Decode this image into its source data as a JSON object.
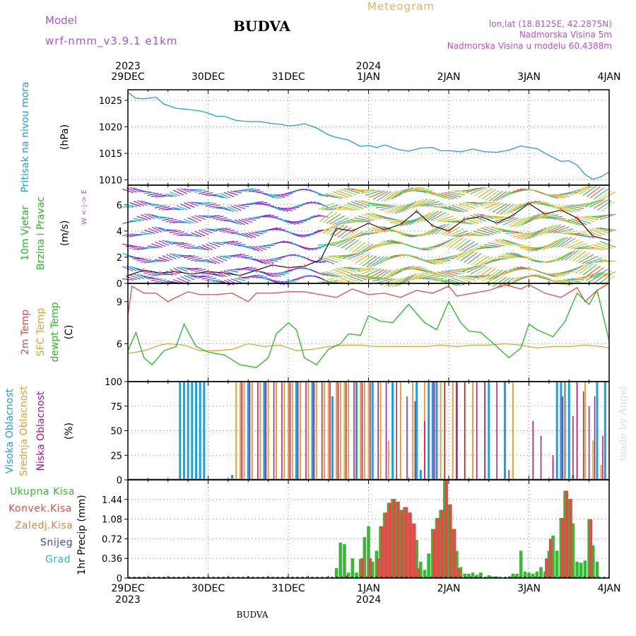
{
  "header": {
    "model_label": "Model",
    "model_name": "wrf-nmm_v3.9.1 e1km",
    "station": "BUDVA",
    "title": "Meteogram",
    "coords": "lon,lat (18.8125E, 42.2875N)",
    "elevation": "Nadmorska Visina 5m",
    "model_elevation": "Nadmorska Visina u modelu 60.4388m",
    "footer_station": "BUDVA",
    "watermark": "made by Angel"
  },
  "colors": {
    "model": "#b050d8",
    "title": "#e8b060",
    "coords": "#c050c8",
    "pressure": "#1aa0e8",
    "wind_label": "#22c01a",
    "temp2m": "#e84848",
    "sfc_temp": "#e8a030",
    "dewpt": "#22c01a",
    "cloud_high": "#1aa0e8",
    "cloud_mid": "#e8a030",
    "cloud_low": "#c0107a",
    "precip_total": "#33bb33",
    "precip_conv": "#e84848",
    "precip_frozen": "#f08040",
    "precip_snow": "#4444dd",
    "precip_grad": "#22c0c0",
    "grid": "#888888"
  },
  "chart_data": [
    {
      "type": "line",
      "x_ticks_top": [
        "29DEC",
        "30DEC",
        "31DEC",
        "1JAN",
        "2JAN",
        "3JAN",
        "4JAN"
      ],
      "year_top": [
        "2023",
        "2024"
      ],
      "x_ticks_bottom": [
        "29DEC",
        "30DEC",
        "31DEC",
        "1JAN",
        "2JAN",
        "3JAN",
        "4JAN"
      ],
      "year_bottom": [
        "2023",
        "2024"
      ],
      "ylabel": "Pritisak na nivou mora",
      "unit": "(hPa)",
      "ylim": [
        1009,
        1027
      ],
      "yticks": [
        1010,
        1015,
        1020,
        1025
      ],
      "series": [
        {
          "x": [
            0,
            0.1,
            0.2,
            0.35,
            0.45,
            0.6,
            0.75,
            0.9,
            1.0,
            1.1,
            1.2,
            1.35,
            1.5,
            1.65,
            1.8,
            1.9,
            2.0,
            2.1,
            2.2,
            2.35,
            2.5,
            2.6,
            2.75,
            2.9,
            3.0,
            3.1,
            3.2,
            3.35,
            3.5,
            3.65,
            3.8,
            3.9,
            4.0,
            4.15,
            4.3,
            4.45,
            4.6,
            4.75,
            4.9,
            5.0,
            5.1,
            5.25,
            5.4,
            5.5,
            5.6,
            5.7,
            5.8,
            5.9,
            6.0
          ],
          "values": [
            1026.5,
            1025.4,
            1025.3,
            1025.6,
            1024.3,
            1023.5,
            1023.3,
            1023.0,
            1022.6,
            1022.0,
            1022.0,
            1021.2,
            1021.0,
            1021.0,
            1020.6,
            1020.5,
            1020.2,
            1020.3,
            1020.6,
            1019.8,
            1018.5,
            1018.0,
            1017.5,
            1016.3,
            1016.5,
            1016.1,
            1016.6,
            1015.8,
            1015.4,
            1016.0,
            1016.1,
            1015.5,
            1015.5,
            1015.3,
            1015.8,
            1015.3,
            1015.2,
            1015.6,
            1016.4,
            1016.1,
            1015.9,
            1014.6,
            1013.5,
            1013.6,
            1012.8,
            1011.0,
            1010.1,
            1010.6,
            1011.5
          ]
        }
      ]
    },
    {
      "type": "scatter",
      "ylabel": "10m Vjetar",
      "ylabel2": "Brzina i Pravac",
      "unit": "(m/s)",
      "direction_legend": "W <-|-> E",
      "ylim": [
        0,
        7.5
      ],
      "yticks": [
        0,
        2,
        4,
        6
      ],
      "series": [
        {
          "name": "wind_speed",
          "x": [
            0,
            0.2,
            0.4,
            0.6,
            0.8,
            1.0,
            1.2,
            1.4,
            1.6,
            1.8,
            2.0,
            2.2,
            2.4,
            2.6,
            2.8,
            3.0,
            3.2,
            3.4,
            3.6,
            3.8,
            4.0,
            4.2,
            4.4,
            4.6,
            4.8,
            5.0,
            5.2,
            5.4,
            5.6,
            5.8,
            6.0
          ],
          "values": [
            0.6,
            1.0,
            0.8,
            0.9,
            0.7,
            0.9,
            0.8,
            0.6,
            1.0,
            1.4,
            1.2,
            1.3,
            1.8,
            4.2,
            4.0,
            4.6,
            4.1,
            4.5,
            5.5,
            4.4,
            4.0,
            4.9,
            5.1,
            4.6,
            5.2,
            6.1,
            5.3,
            5.6,
            5.0,
            3.6,
            3.3
          ]
        }
      ]
    },
    {
      "type": "line",
      "ylabel": "2m Temp",
      "ylabel2": "SFC Temp",
      "ylabel3": "dewpt Temp",
      "unit": "(C)",
      "ylim": [
        3.3,
        10.3
      ],
      "yticks": [
        6,
        9
      ],
      "series": [
        {
          "name": "2m Temp",
          "x": [
            0,
            0.05,
            0.2,
            0.35,
            0.5,
            0.6,
            0.75,
            0.9,
            1.1,
            1.3,
            1.5,
            1.6,
            1.8,
            2.0,
            2.2,
            2.4,
            2.6,
            2.8,
            3.0,
            3.2,
            3.4,
            3.6,
            3.8,
            4.0,
            4.1,
            4.3,
            4.5,
            4.7,
            4.9,
            5.0,
            5.2,
            5.4,
            5.6,
            5.7,
            5.85,
            6.0
          ],
          "values": [
            8.0,
            10.1,
            9.6,
            9.6,
            9.0,
            9.3,
            9.7,
            9.5,
            9.5,
            9.6,
            9.0,
            9.6,
            9.6,
            9.7,
            9.7,
            9.5,
            9.3,
            9.9,
            9.5,
            9.6,
            9.3,
            9.8,
            9.6,
            10.1,
            9.4,
            9.6,
            9.8,
            10.2,
            9.9,
            10.2,
            9.6,
            9.3,
            10.0,
            9.0,
            9.8,
            10.3
          ]
        },
        {
          "name": "SFC Temp",
          "x": [
            0,
            0.2,
            0.4,
            0.5,
            0.7,
            0.9,
            1.1,
            1.3,
            1.5,
            1.7,
            1.9,
            2.1,
            2.3,
            2.5,
            2.7,
            2.9,
            3.1,
            3.3,
            3.5,
            3.7,
            3.9,
            4.1,
            4.3,
            4.5,
            4.7,
            4.9,
            5.1,
            5.3,
            5.5,
            5.7,
            5.9,
            6.0
          ],
          "values": [
            5.3,
            5.5,
            5.9,
            6.0,
            5.9,
            5.5,
            5.5,
            5.6,
            6.0,
            5.8,
            5.9,
            5.5,
            5.6,
            5.8,
            5.9,
            5.9,
            5.8,
            5.8,
            5.8,
            5.8,
            5.9,
            5.8,
            5.9,
            5.9,
            6.0,
            5.9,
            5.7,
            5.8,
            5.8,
            5.9,
            5.8,
            5.7
          ]
        },
        {
          "name": "dewpt Temp",
          "x": [
            0,
            0.1,
            0.2,
            0.3,
            0.45,
            0.6,
            0.7,
            0.85,
            1.0,
            1.2,
            1.4,
            1.6,
            1.75,
            1.85,
            2.0,
            2.1,
            2.2,
            2.35,
            2.5,
            2.65,
            2.75,
            2.9,
            3.0,
            3.15,
            3.3,
            3.5,
            3.7,
            3.85,
            4.0,
            4.15,
            4.25,
            4.4,
            4.6,
            4.75,
            4.9,
            5.0,
            5.1,
            5.3,
            5.45,
            5.6,
            5.75,
            5.85,
            6.0
          ],
          "values": [
            5.5,
            6.8,
            5.0,
            4.5,
            5.5,
            5.8,
            7.4,
            5.8,
            5.4,
            5.2,
            4.5,
            4.3,
            5.0,
            6.7,
            7.5,
            7.0,
            5.0,
            4.5,
            5.6,
            6.0,
            6.7,
            6.6,
            8.0,
            7.6,
            7.5,
            8.8,
            7.5,
            7.0,
            9.0,
            7.5,
            6.9,
            6.8,
            5.8,
            5.0,
            5.7,
            7.4,
            7.0,
            6.5,
            7.6,
            9.6,
            8.8,
            9.8,
            6.2
          ]
        }
      ]
    },
    {
      "type": "bar",
      "ylabel": "Visoka Oblacnost",
      "ylabel2": "Srednja Oblacnost",
      "ylabel3": "Niska Oblacnost",
      "unit": "(%)",
      "ylim": [
        0,
        100
      ],
      "yticks": [
        0,
        25,
        50,
        75,
        100
      ],
      "series": [
        {
          "name": "Visoka Oblacnost",
          "x": [
            0.65,
            0.7,
            0.75,
            0.8,
            0.85,
            0.9,
            0.95,
            1.3,
            1.5,
            1.7,
            2.1,
            2.3,
            2.55,
            2.85,
            3.05,
            3.3,
            3.6,
            3.65,
            3.75,
            3.8,
            3.85,
            4.1,
            4.5,
            4.7,
            5.35,
            5.4,
            5.45,
            5.5,
            5.55,
            5.85,
            5.95
          ],
          "values": [
            100,
            100,
            100,
            100,
            100,
            100,
            100,
            5,
            100,
            100,
            100,
            100,
            85,
            100,
            100,
            100,
            100,
            10,
            100,
            100,
            100,
            100,
            100,
            100,
            100,
            100,
            100,
            100,
            5,
            100,
            100
          ]
        },
        {
          "name": "Srednja Oblacnost",
          "x": [
            1.35,
            1.4,
            1.45,
            1.55,
            1.65,
            1.75,
            1.85,
            1.95,
            2.0,
            2.05,
            2.15,
            2.25,
            2.35,
            2.45,
            2.5,
            2.6,
            2.65,
            2.7,
            2.75,
            2.9,
            2.95,
            3.0,
            3.15,
            3.25,
            3.4,
            3.55,
            3.7,
            3.9,
            3.95,
            4.05,
            4.2,
            4.3,
            4.45,
            4.8,
            5.3,
            5.45,
            5.6,
            5.7,
            5.8,
            5.9
          ],
          "values": [
            100,
            100,
            100,
            100,
            100,
            100,
            100,
            100,
            100,
            100,
            100,
            100,
            100,
            100,
            100,
            100,
            100,
            100,
            100,
            100,
            100,
            100,
            100,
            40,
            100,
            100,
            100,
            100,
            100,
            100,
            100,
            100,
            100,
            100,
            20,
            100,
            100,
            100,
            40,
            15
          ]
        },
        {
          "name": "Niska Oblacnost",
          "x": [
            1.42,
            1.52,
            1.62,
            1.72,
            1.82,
            1.92,
            2.02,
            2.12,
            2.22,
            2.32,
            2.42,
            2.52,
            2.62,
            2.72,
            2.82,
            2.92,
            3.02,
            3.12,
            3.22,
            3.35,
            3.48,
            3.58,
            3.7,
            3.82,
            3.95,
            4.1,
            4.2,
            4.35,
            4.45,
            4.6,
            4.75,
            5.05,
            5.15,
            5.3,
            5.42,
            5.55,
            5.6,
            5.68,
            5.75,
            5.82,
            5.92
          ],
          "values": [
            100,
            100,
            100,
            100,
            100,
            100,
            100,
            100,
            100,
            100,
            100,
            100,
            100,
            100,
            100,
            100,
            100,
            100,
            100,
            100,
            85,
            80,
            60,
            100,
            100,
            100,
            100,
            100,
            100,
            100,
            10,
            60,
            45,
            25,
            85,
            65,
            100,
            90,
            75,
            85,
            45
          ]
        }
      ]
    },
    {
      "type": "bar",
      "ylabel": "1hr Precip",
      "unit": "(mm)",
      "ylim": [
        0,
        1.8
      ],
      "yticks": [
        0,
        0.36,
        0.72,
        1.08,
        1.44
      ],
      "legend": [
        "Ukupna Kisa",
        "Konvek.Kisa",
        "Zaledj.Kisa",
        "Snijeg",
        "Grad"
      ],
      "series": [
        {
          "name": "Ukupna Kisa",
          "x": [
            2.6,
            2.65,
            2.7,
            2.75,
            2.8,
            2.85,
            2.9,
            2.95,
            3.0,
            3.05,
            3.1,
            3.15,
            3.2,
            3.25,
            3.3,
            3.35,
            3.4,
            3.45,
            3.5,
            3.55,
            3.6,
            3.65,
            3.7,
            3.75,
            3.8,
            3.85,
            3.9,
            3.95,
            4.0,
            4.05,
            4.1,
            4.15,
            4.2,
            4.25,
            4.3,
            4.35,
            4.4,
            4.5,
            4.55,
            4.6,
            4.8,
            4.85,
            4.9,
            4.95,
            5.0,
            5.05,
            5.1,
            5.15,
            5.2,
            5.25,
            5.3,
            5.35,
            5.4,
            5.45,
            5.5,
            5.55,
            5.6,
            5.65,
            5.7,
            5.75,
            5.8,
            5.85
          ],
          "values": [
            0.18,
            0.65,
            0.62,
            0.1,
            0.36,
            0.1,
            0.35,
            0.75,
            0.95,
            0.3,
            0.5,
            0.95,
            1.2,
            1.38,
            1.45,
            1.4,
            1.25,
            1.3,
            1.2,
            1.0,
            0.7,
            0.3,
            0.15,
            0.45,
            0.9,
            1.1,
            1.25,
            1.8,
            1.35,
            0.9,
            0.5,
            0.2,
            0.08,
            0.08,
            0.1,
            0.06,
            0.1,
            0.05,
            0.03,
            0.03,
            0.08,
            0.08,
            0.5,
            0.12,
            0.1,
            0.08,
            0.12,
            0.2,
            0.12,
            0.5,
            0.78,
            0.5,
            1.1,
            1.6,
            1.45,
            1.0,
            0.3,
            0.28,
            0.32,
            1.08,
            0.6,
            0.3
          ]
        },
        {
          "name": "Konvek.Kisa",
          "x": [
            2.72,
            2.92,
            3.02,
            3.12,
            3.17,
            3.22,
            3.27,
            3.32,
            3.37,
            3.42,
            3.47,
            3.52,
            3.57,
            3.62,
            3.82,
            3.87,
            3.92,
            3.97,
            4.02,
            4.07,
            4.12,
            5.22,
            5.27,
            5.42,
            5.47,
            5.52,
            5.77
          ],
          "values": [
            0.05,
            0.36,
            0.36,
            0.36,
            0.95,
            1.2,
            1.38,
            1.45,
            1.4,
            1.25,
            1.3,
            1.2,
            1.0,
            0.18,
            0.9,
            1.1,
            1.25,
            1.8,
            1.35,
            0.9,
            0.18,
            0.36,
            0.72,
            1.1,
            1.6,
            1.45,
            1.08
          ]
        }
      ]
    }
  ]
}
